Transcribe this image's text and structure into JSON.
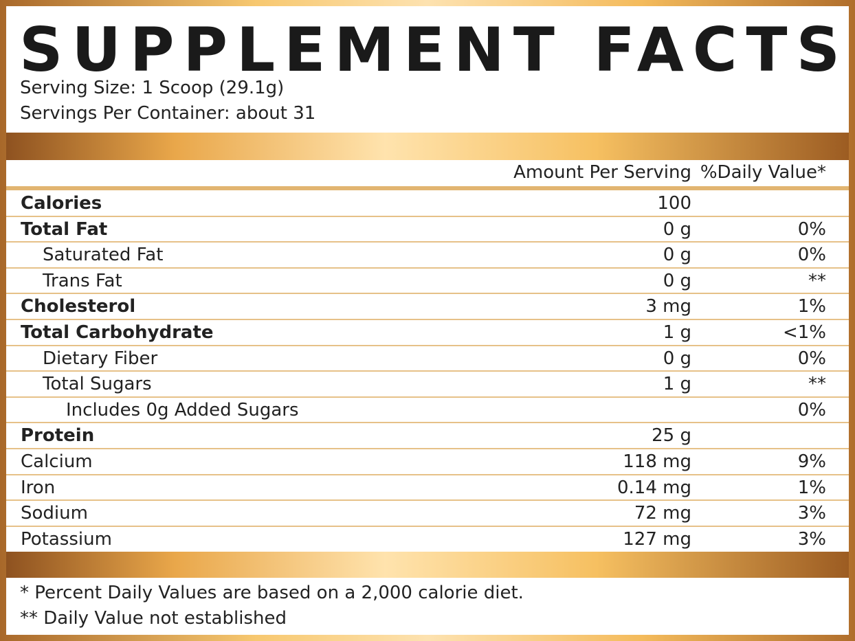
{
  "header": {
    "title": "SUPPLEMENT FACTS",
    "serving_size": "Serving Size: 1 Scoop (29.1g)",
    "servings_per_container": "Servings Per Container: about 31"
  },
  "table": {
    "columns": [
      "Amount Per Serving",
      "%Daily Value*"
    ],
    "rows": [
      {
        "name": "Calories",
        "amount": "100"
      },
      {
        "name": "Total Fat",
        "amount": "0 g",
        "dv": "0%"
      },
      {
        "name": "Saturated Fat",
        "amount": "0 g",
        "dv": "0%"
      },
      {
        "name": "Trans Fat",
        "amount": "0 g",
        "dv": "**"
      },
      {
        "name": "Cholesterol",
        "amount": "3 mg",
        "dv": "1%"
      },
      {
        "name": "Total Carbohydrate",
        "amount": "1 g",
        "dv": "<1%"
      },
      {
        "name": "Dietary Fiber",
        "amount": "0 g",
        "dv": "0%"
      },
      {
        "name": "Total Sugars",
        "amount": "1 g",
        "dv": "**"
      },
      {
        "name": "Includes 0g Added Sugars",
        "dv": "0%"
      },
      {
        "name": "Protein",
        "amount": "25 g"
      },
      {
        "name": "Calcium",
        "amount": "118 mg",
        "dv": "9%"
      },
      {
        "name": "Iron",
        "amount": "0.14 mg",
        "dv": "1%"
      },
      {
        "name": "Sodium",
        "amount": "72 mg",
        "dv": "3%"
      },
      {
        "name": "Potassium",
        "amount": "127 mg",
        "dv": "3%"
      }
    ]
  },
  "footnotes": [
    "* Percent Daily Values are based on a 2,000 calorie diet.",
    "** Daily Value not established"
  ]
}
